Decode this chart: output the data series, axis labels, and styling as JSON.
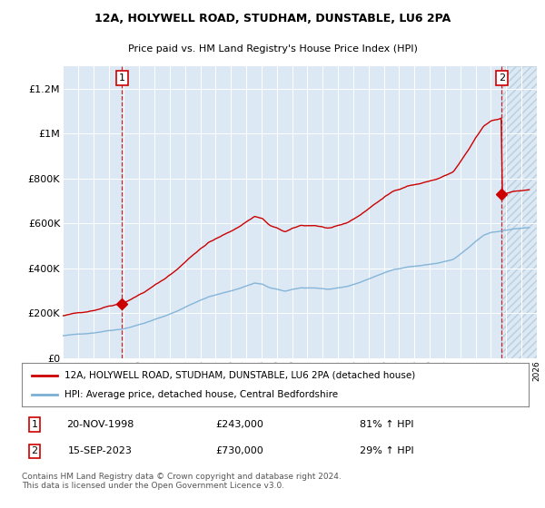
{
  "title1": "12A, HOLYWELL ROAD, STUDHAM, DUNSTABLE, LU6 2PA",
  "title2": "Price paid vs. HM Land Registry's House Price Index (HPI)",
  "background_color": "#dce9f5",
  "red_line_color": "#cc0000",
  "blue_line_color": "#7bafd4",
  "dashed_red_color": "#cc0000",
  "ylim": [
    0,
    1300000
  ],
  "yticks": [
    0,
    200000,
    400000,
    600000,
    800000,
    1000000,
    1200000
  ],
  "ytick_labels": [
    "£0",
    "£200K",
    "£400K",
    "£600K",
    "£800K",
    "£1M",
    "£1.2M"
  ],
  "legend_label_red": "12A, HOLYWELL ROAD, STUDHAM, DUNSTABLE, LU6 2PA (detached house)",
  "legend_label_blue": "HPI: Average price, detached house, Central Bedfordshire",
  "point1_date": "20-NOV-1998",
  "point1_price": "£243,000",
  "point1_hpi": "81% ↑ HPI",
  "point1_year": 1998.88,
  "point1_value": 243000,
  "point2_date": "15-SEP-2023",
  "point2_price": "£730,000",
  "point2_hpi": "29% ↑ HPI",
  "point2_year": 2023.71,
  "point2_value": 730000,
  "footnote": "Contains HM Land Registry data © Crown copyright and database right 2024.\nThis data is licensed under the Open Government Licence v3.0.",
  "xmin": 1995,
  "xmax": 2026
}
